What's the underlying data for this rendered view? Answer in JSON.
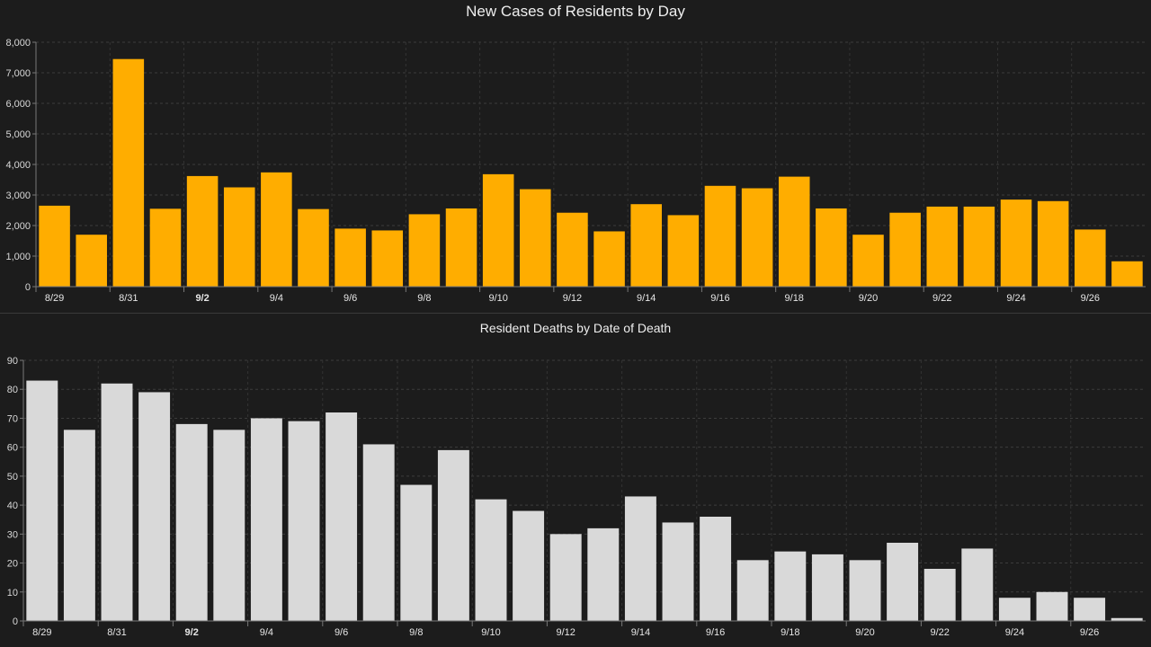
{
  "charts": [
    {
      "type": "bar",
      "title": "New Cases of Residents by Day",
      "color": "#ffad00",
      "ylim": [
        0,
        8000
      ],
      "yticks": [
        "0",
        "1,000",
        "2,000",
        "3,000",
        "4,000",
        "5,000",
        "6,000",
        "7,000",
        "8,000"
      ],
      "categories": [
        "8/29",
        "8/30",
        "8/31",
        "9/1",
        "9/2",
        "9/3",
        "9/4",
        "9/5",
        "9/6",
        "9/7",
        "9/8",
        "9/9",
        "9/10",
        "9/11",
        "9/12",
        "9/13",
        "9/14",
        "9/15",
        "9/16",
        "9/17",
        "9/18",
        "9/19",
        "9/20",
        "9/21",
        "9/22",
        "9/23",
        "9/24",
        "9/25",
        "9/26",
        "9/27"
      ],
      "xtick_labels": [
        "8/29",
        "",
        "8/31",
        "",
        "9/2",
        "",
        "9/4",
        "",
        "9/6",
        "",
        "9/8",
        "",
        "9/10",
        "",
        "9/12",
        "",
        "9/14",
        "",
        "9/16",
        "",
        "9/18",
        "",
        "9/20",
        "",
        "9/22",
        "",
        "9/24",
        "",
        "9/26",
        ""
      ],
      "values": [
        2650,
        1700,
        7450,
        2550,
        3620,
        3250,
        3740,
        2540,
        1900,
        1840,
        2370,
        2560,
        3680,
        3190,
        2420,
        1810,
        2700,
        2340,
        3300,
        3220,
        3600,
        2560,
        1700,
        2420,
        2620,
        2620,
        2850,
        2800,
        1870,
        830
      ],
      "grid": true
    },
    {
      "type": "bar",
      "title": "Resident Deaths by Date of Death",
      "color": "#d9d9d9",
      "ylim": [
        0,
        90
      ],
      "yticks": [
        "0",
        "10",
        "20",
        "30",
        "40",
        "50",
        "60",
        "70",
        "80",
        "90"
      ],
      "categories": [
        "8/29",
        "8/30",
        "8/31",
        "9/1",
        "9/2",
        "9/3",
        "9/4",
        "9/5",
        "9/6",
        "9/7",
        "9/8",
        "9/9",
        "9/10",
        "9/11",
        "9/12",
        "9/13",
        "9/14",
        "9/15",
        "9/16",
        "9/17",
        "9/18",
        "9/19",
        "9/20",
        "9/21",
        "9/22",
        "9/23",
        "9/24",
        "9/25",
        "9/26",
        "9/27"
      ],
      "xtick_labels": [
        "8/29",
        "",
        "8/31",
        "",
        "9/2",
        "",
        "9/4",
        "",
        "9/6",
        "",
        "9/8",
        "",
        "9/10",
        "",
        "9/12",
        "",
        "9/14",
        "",
        "9/16",
        "",
        "9/18",
        "",
        "9/20",
        "",
        "9/22",
        "",
        "9/24",
        "",
        "9/26",
        ""
      ],
      "values": [
        83,
        66,
        82,
        79,
        68,
        66,
        70,
        69,
        72,
        61,
        47,
        59,
        42,
        38,
        30,
        32,
        43,
        34,
        36,
        21,
        24,
        23,
        21,
        27,
        18,
        25,
        8,
        10,
        8,
        1
      ],
      "grid": true
    }
  ]
}
